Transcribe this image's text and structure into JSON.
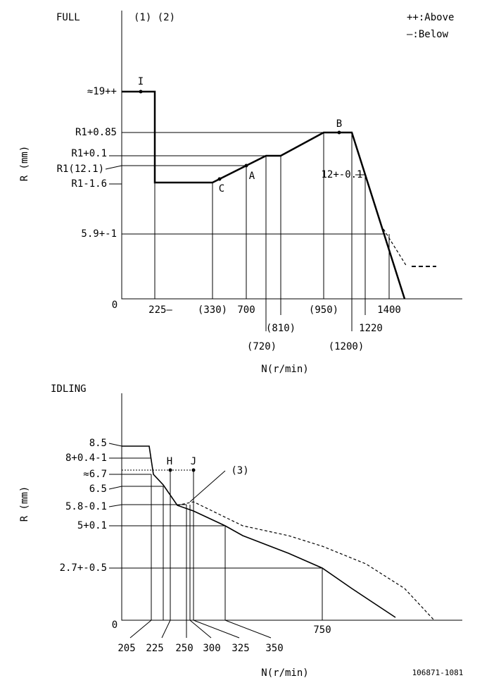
{
  "full": {
    "title": "FULL",
    "refs": "(1) (2)",
    "legend_above": "++:Above",
    "legend_below": "—:Below",
    "y_axis_label": "R (mm)",
    "x_axis_label": "N(r/min)",
    "origin": "0",
    "y_labels": [
      "≈19++",
      "R1+0.85",
      "R1+0.1",
      "R1(12.1)",
      "R1-1.6",
      "5.9+-1"
    ],
    "x_labels": [
      "225—",
      "(330)",
      "700",
      "(720)",
      "(810)",
      "(950)",
      "(1200)",
      "1220",
      "1400"
    ],
    "points": [
      "I",
      "C",
      "A",
      "B"
    ],
    "annotation": "12+-0.1"
  },
  "idling": {
    "title": "IDLING",
    "y_axis_label": "R (mm)",
    "x_axis_label": "N(r/min)",
    "origin": "0",
    "y_labels": [
      "8.5",
      "8+0.4-1",
      "≈6.7",
      "6.5",
      "5.8-0.1",
      "5+0.1",
      "2.7+-0.5"
    ],
    "x_labels": [
      "205",
      "225",
      "250",
      "300",
      "325",
      "350",
      "750"
    ],
    "points": [
      "H",
      "J"
    ],
    "annotation": "(3)"
  },
  "footer": {
    "code": "106871-1081"
  }
}
